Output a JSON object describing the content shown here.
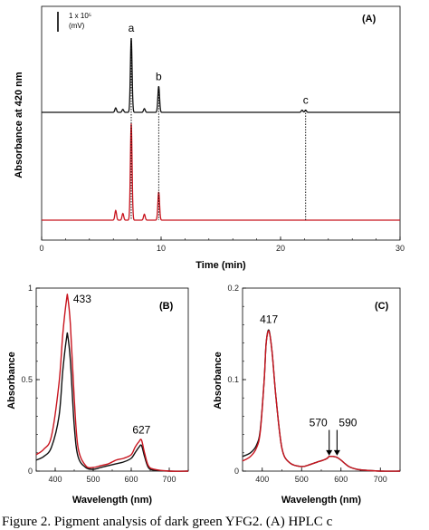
{
  "colors": {
    "black": "#111111",
    "red": "#c8141e"
  },
  "caption": "Figure 2. Pigment analysis of dark green YFG2. (A) HPLC c",
  "chart_data": [
    {
      "id": "A",
      "type": "line",
      "panel_label": "(A)",
      "xlabel": "Time (min)",
      "ylabel": "Absorbance at 420 nm",
      "xlim": [
        0,
        30
      ],
      "xticks": [
        "0",
        "10",
        "20",
        "30"
      ],
      "scale_bar_label": [
        "1 x 10⁵",
        "(mV)"
      ],
      "peaks": [
        {
          "label": "a",
          "time": 7.5
        },
        {
          "label": "b",
          "time": 9.8
        },
        {
          "label": "c",
          "time": 22.1
        }
      ],
      "series": [
        {
          "color": "black",
          "peaks": [
            [
              6.2,
              0.06
            ],
            [
              6.8,
              0.04
            ],
            [
              7.5,
              1.0
            ],
            [
              8.6,
              0.05
            ],
            [
              9.8,
              0.35
            ],
            [
              21.8,
              0.03
            ],
            [
              22.1,
              0.03
            ]
          ]
        },
        {
          "color": "red",
          "peaks": [
            [
              6.2,
              0.13
            ],
            [
              6.8,
              0.09
            ],
            [
              7.5,
              1.3
            ],
            [
              8.6,
              0.08
            ],
            [
              9.8,
              0.38
            ],
            [
              22.1,
              0.0
            ]
          ]
        }
      ]
    },
    {
      "id": "B",
      "type": "line",
      "panel_label": "(B)",
      "xlabel": "Wavelength (nm)",
      "ylabel": "Absorbance",
      "xlim": [
        350,
        750
      ],
      "ylim": [
        0,
        1
      ],
      "xticks": [
        "400",
        "500",
        "600",
        "700"
      ],
      "yticks": [
        "0",
        "0.5",
        "1"
      ],
      "annotations": [
        "433",
        "627"
      ],
      "series": [
        {
          "color": "black",
          "x": [
            350,
            370,
            390,
            410,
            420,
            430,
            433,
            440,
            450,
            460,
            480,
            500,
            520,
            540,
            560,
            580,
            600,
            610,
            620,
            627,
            635,
            645,
            660,
            700,
            750
          ],
          "y": [
            0.06,
            0.08,
            0.13,
            0.3,
            0.55,
            0.73,
            0.74,
            0.6,
            0.25,
            0.08,
            0.02,
            0.01,
            0.02,
            0.03,
            0.04,
            0.05,
            0.07,
            0.1,
            0.13,
            0.14,
            0.08,
            0.02,
            0.005,
            0.0,
            0.0
          ]
        },
        {
          "color": "red",
          "x": [
            350,
            370,
            390,
            410,
            420,
            430,
            433,
            440,
            450,
            460,
            480,
            500,
            520,
            540,
            560,
            580,
            600,
            610,
            620,
            627,
            635,
            645,
            660,
            700,
            750
          ],
          "y": [
            0.09,
            0.12,
            0.19,
            0.48,
            0.75,
            0.94,
            0.95,
            0.8,
            0.4,
            0.13,
            0.03,
            0.02,
            0.03,
            0.04,
            0.06,
            0.07,
            0.09,
            0.13,
            0.16,
            0.17,
            0.1,
            0.03,
            0.01,
            0.0,
            0.0
          ]
        }
      ]
    },
    {
      "id": "C",
      "type": "line",
      "panel_label": "(C)",
      "xlabel": "Wavelength (nm)",
      "ylabel": "Absorbance",
      "xlim": [
        350,
        750
      ],
      "ylim": [
        0,
        0.2
      ],
      "xticks": [
        "400",
        "500",
        "600",
        "700"
      ],
      "yticks": [
        "0",
        "0.1",
        "0.2"
      ],
      "annotations": [
        "417",
        "570",
        "590"
      ],
      "series": [
        {
          "color": "black",
          "x": [
            350,
            370,
            385,
            395,
            405,
            410,
            417,
            425,
            435,
            450,
            470,
            500,
            520,
            540,
            555,
            565,
            570,
            580,
            590,
            600,
            620,
            640,
            660,
            700,
            750
          ],
          "y": [
            0.016,
            0.02,
            0.028,
            0.045,
            0.1,
            0.14,
            0.154,
            0.13,
            0.08,
            0.025,
            0.009,
            0.005,
            0.007,
            0.01,
            0.012,
            0.014,
            0.016,
            0.016,
            0.015,
            0.012,
            0.005,
            0.002,
            0.001,
            0.0,
            0.0
          ]
        },
        {
          "color": "red",
          "x": [
            350,
            370,
            385,
            395,
            405,
            410,
            417,
            425,
            435,
            450,
            470,
            500,
            520,
            540,
            555,
            565,
            570,
            580,
            590,
            600,
            620,
            640,
            660,
            700,
            750
          ],
          "y": [
            0.011,
            0.016,
            0.025,
            0.043,
            0.1,
            0.14,
            0.153,
            0.13,
            0.08,
            0.025,
            0.009,
            0.005,
            0.007,
            0.01,
            0.012,
            0.014,
            0.016,
            0.016,
            0.015,
            0.012,
            0.005,
            0.002,
            0.001,
            0.0,
            0.0
          ]
        }
      ]
    }
  ]
}
